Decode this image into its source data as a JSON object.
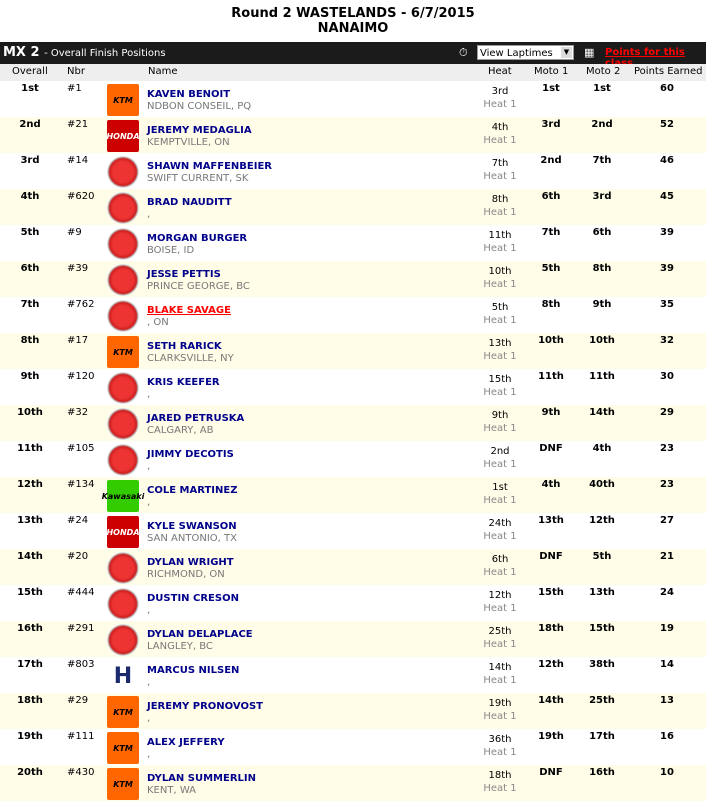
{
  "title": {
    "line1": "Round 2 WASTELANDS - 6/7/2015",
    "line2": "NANAIMO"
  },
  "bar": {
    "class": "MX 2",
    "subtitle": "- Overall Finish Positions",
    "laptimes": "View Laptimes",
    "points_link": "Points for this class"
  },
  "columns": {
    "overall": "Overall",
    "nbr": "Nbr",
    "name": "Name",
    "heat": "Heat",
    "moto1": "Moto 1",
    "moto2": "Moto 2",
    "points": "Points Earned"
  },
  "brand_colors": {
    "ktm": "#ff6600",
    "honda": "#cc0000",
    "yamaha": "#e03030",
    "kawasaki": "#33cc00",
    "husqvarna": "#1a2a6c"
  },
  "rows": [
    {
      "overall": "1st",
      "nbr": "#1",
      "brand": "ktm",
      "name": "KAVEN BENOIT",
      "loc": "NDBON CONSEIL, PQ",
      "heat": "3rd",
      "heat_no": "Heat 1",
      "m1": "1st",
      "m2": "1st",
      "pts": "60"
    },
    {
      "overall": "2nd",
      "nbr": "#21",
      "brand": "honda",
      "name": "JEREMY MEDAGLIA",
      "loc": "KEMPTVILLE, ON",
      "heat": "4th",
      "heat_no": "Heat 1",
      "m1": "3rd",
      "m2": "2nd",
      "pts": "52"
    },
    {
      "overall": "3rd",
      "nbr": "#14",
      "brand": "yamaha",
      "name": "SHAWN MAFFENBEIER",
      "loc": "SWIFT CURRENT, SK",
      "heat": "7th",
      "heat_no": "Heat 1",
      "m1": "2nd",
      "m2": "7th",
      "pts": "46"
    },
    {
      "overall": "4th",
      "nbr": "#620",
      "brand": "yamaha",
      "name": "BRAD NAUDITT",
      "loc": ",",
      "heat": "8th",
      "heat_no": "Heat 1",
      "m1": "6th",
      "m2": "3rd",
      "pts": "45"
    },
    {
      "overall": "5th",
      "nbr": "#9",
      "brand": "yamaha",
      "name": "MORGAN BURGER",
      "loc": "BOISE, ID",
      "heat": "11th",
      "heat_no": "Heat 1",
      "m1": "7th",
      "m2": "6th",
      "pts": "39"
    },
    {
      "overall": "6th",
      "nbr": "#39",
      "brand": "yamaha",
      "name": "JESSE PETTIS",
      "loc": "PRINCE GEORGE, BC",
      "heat": "10th",
      "heat_no": "Heat 1",
      "m1": "5th",
      "m2": "8th",
      "pts": "39"
    },
    {
      "overall": "7th",
      "nbr": "#762",
      "brand": "yamaha",
      "name": "BLAKE SAVAGE",
      "loc": ", ON",
      "heat": "5th",
      "heat_no": "Heat 1",
      "m1": "8th",
      "m2": "9th",
      "pts": "35",
      "highlight": true
    },
    {
      "overall": "8th",
      "nbr": "#17",
      "brand": "ktm",
      "name": "SETH RARICK",
      "loc": "CLARKSVILLE, NY",
      "heat": "13th",
      "heat_no": "Heat 1",
      "m1": "10th",
      "m2": "10th",
      "pts": "32"
    },
    {
      "overall": "9th",
      "nbr": "#120",
      "brand": "yamaha",
      "name": "KRIS KEEFER",
      "loc": ",",
      "heat": "15th",
      "heat_no": "Heat 1",
      "m1": "11th",
      "m2": "11th",
      "pts": "30"
    },
    {
      "overall": "10th",
      "nbr": "#32",
      "brand": "yamaha",
      "name": "JARED PETRUSKA",
      "loc": "CALGARY, AB",
      "heat": "9th",
      "heat_no": "Heat 1",
      "m1": "9th",
      "m2": "14th",
      "pts": "29"
    },
    {
      "overall": "11th",
      "nbr": "#105",
      "brand": "yamaha",
      "name": "JIMMY DECOTIS",
      "loc": ",",
      "heat": "2nd",
      "heat_no": "Heat 1",
      "m1": "DNF",
      "m2": "4th",
      "pts": "23"
    },
    {
      "overall": "12th",
      "nbr": "#134",
      "brand": "kawasaki",
      "name": "COLE MARTINEZ",
      "loc": ",",
      "heat": "1st",
      "heat_no": "Heat 1",
      "m1": "4th",
      "m2": "40th",
      "pts": "23"
    },
    {
      "overall": "13th",
      "nbr": "#24",
      "brand": "honda",
      "name": "KYLE SWANSON",
      "loc": "SAN ANTONIO, TX",
      "heat": "24th",
      "heat_no": "Heat 1",
      "m1": "13th",
      "m2": "12th",
      "pts": "27"
    },
    {
      "overall": "14th",
      "nbr": "#20",
      "brand": "yamaha",
      "name": "DYLAN WRIGHT",
      "loc": "RICHMOND, ON",
      "heat": "6th",
      "heat_no": "Heat 1",
      "m1": "DNF",
      "m2": "5th",
      "pts": "21"
    },
    {
      "overall": "15th",
      "nbr": "#444",
      "brand": "yamaha",
      "name": "DUSTIN CRESON",
      "loc": ",",
      "heat": "12th",
      "heat_no": "Heat 1",
      "m1": "15th",
      "m2": "13th",
      "pts": "24"
    },
    {
      "overall": "16th",
      "nbr": "#291",
      "brand": "yamaha",
      "name": "DYLAN DELAPLACE",
      "loc": "LANGLEY, BC",
      "heat": "25th",
      "heat_no": "Heat 1",
      "m1": "18th",
      "m2": "15th",
      "pts": "19"
    },
    {
      "overall": "17th",
      "nbr": "#803",
      "brand": "husqvarna",
      "name": "MARCUS NILSEN",
      "loc": ",",
      "heat": "14th",
      "heat_no": "Heat 1",
      "m1": "12th",
      "m2": "38th",
      "pts": "14"
    },
    {
      "overall": "18th",
      "nbr": "#29",
      "brand": "ktm",
      "name": "JEREMY PRONOVOST",
      "loc": ",",
      "heat": "19th",
      "heat_no": "Heat 1",
      "m1": "14th",
      "m2": "25th",
      "pts": "13"
    },
    {
      "overall": "19th",
      "nbr": "#111",
      "brand": "ktm",
      "name": "ALEX JEFFERY",
      "loc": ",",
      "heat": "36th",
      "heat_no": "Heat 1",
      "m1": "19th",
      "m2": "17th",
      "pts": "16"
    },
    {
      "overall": "20th",
      "nbr": "#430",
      "brand": "ktm",
      "name": "DYLAN SUMMERLIN",
      "loc": "KENT, WA",
      "heat": "18th",
      "heat_no": "Heat 1",
      "m1": "DNF",
      "m2": "16th",
      "pts": "10"
    }
  ],
  "brand_labels": {
    "ktm": "KTM",
    "honda": "HONDA",
    "kawasaki": "Kawasaki",
    "husqvarna": "H",
    "yamaha": ""
  }
}
